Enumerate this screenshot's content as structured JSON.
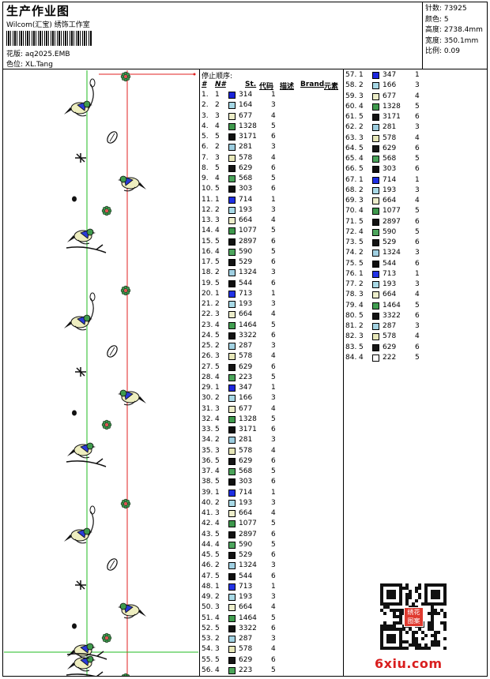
{
  "header": {
    "title": "生产作业图",
    "subtitle": "Wilcom(汇宝) 绣饰工作室",
    "file_label": "花版:",
    "file_value": "aq2025.EMB",
    "colorway_label": "色位:",
    "colorway_value": "XL.Tang"
  },
  "stats": [
    {
      "label": "针数:",
      "value": "73925"
    },
    {
      "label": "颜色:",
      "value": "5"
    },
    {
      "label": "高度:",
      "value": "2738.4mm"
    },
    {
      "label": "宽度:",
      "value": "350.1mm"
    },
    {
      "label": "比例:",
      "value": "0.09"
    }
  ],
  "sequence": {
    "title": "停止顺序:",
    "headers": {
      "stop": "#",
      "needle": "N#",
      "st": "St.",
      "code": "代码",
      "desc": "描述",
      "brand": "Brand",
      "element": "元素"
    }
  },
  "palette": {
    "314": "#1a23d8",
    "164": "#a5d6e4",
    "677": "#ecedc8",
    "1328": "#3f9a4d",
    "3171": "#111111",
    "281": "#9ccddf",
    "578": "#e7e7b9",
    "629": "#161616",
    "568": "#4aa35a",
    "303": "#101010",
    "714": "#1e2fe3",
    "193": "#a8d9e6",
    "664": "#edeecb",
    "1077": "#3d984c",
    "2897": "#121212",
    "590": "#4da55d",
    "529": "#141414",
    "1324": "#a0d0e2",
    "544": "#0f0f0f",
    "713": "#2233e6",
    "1464": "#419e50",
    "3322": "#131313",
    "287": "#a3d3e3",
    "223": "#4ba55a",
    "347": "#1d27de",
    "166": "#a6d7e5"
  },
  "rows_left": [
    {
      "n": "1.",
      "nd": "1",
      "c": "314",
      "e": "1"
    },
    {
      "n": "2.",
      "nd": "2",
      "c": "164",
      "e": "3"
    },
    {
      "n": "3.",
      "nd": "3",
      "c": "677",
      "e": "4"
    },
    {
      "n": "4.",
      "nd": "4",
      "c": "1328",
      "e": "5"
    },
    {
      "n": "5.",
      "nd": "5",
      "c": "3171",
      "e": "6"
    },
    {
      "n": "6.",
      "nd": "2",
      "c": "281",
      "e": "3"
    },
    {
      "n": "7.",
      "nd": "3",
      "c": "578",
      "e": "4"
    },
    {
      "n": "8.",
      "nd": "5",
      "c": "629",
      "e": "6"
    },
    {
      "n": "9.",
      "nd": "4",
      "c": "568",
      "e": "5"
    },
    {
      "n": "10.",
      "nd": "5",
      "c": "303",
      "e": "6"
    },
    {
      "n": "11.",
      "nd": "1",
      "c": "714",
      "e": "1"
    },
    {
      "n": "12.",
      "nd": "2",
      "c": "193",
      "e": "3"
    },
    {
      "n": "13.",
      "nd": "3",
      "c": "664",
      "e": "4"
    },
    {
      "n": "14.",
      "nd": "4",
      "c": "1077",
      "e": "5"
    },
    {
      "n": "15.",
      "nd": "5",
      "c": "2897",
      "e": "6"
    },
    {
      "n": "16.",
      "nd": "4",
      "c": "590",
      "e": "5"
    },
    {
      "n": "17.",
      "nd": "5",
      "c": "529",
      "e": "6"
    },
    {
      "n": "18.",
      "nd": "2",
      "c": "1324",
      "e": "3"
    },
    {
      "n": "19.",
      "nd": "5",
      "c": "544",
      "e": "6"
    },
    {
      "n": "20.",
      "nd": "1",
      "c": "713",
      "e": "1"
    },
    {
      "n": "21.",
      "nd": "2",
      "c": "193",
      "e": "3"
    },
    {
      "n": "22.",
      "nd": "3",
      "c": "664",
      "e": "4"
    },
    {
      "n": "23.",
      "nd": "4",
      "c": "1464",
      "e": "5"
    },
    {
      "n": "24.",
      "nd": "5",
      "c": "3322",
      "e": "6"
    },
    {
      "n": "25.",
      "nd": "2",
      "c": "287",
      "e": "3"
    },
    {
      "n": "26.",
      "nd": "3",
      "c": "578",
      "e": "4"
    },
    {
      "n": "27.",
      "nd": "5",
      "c": "629",
      "e": "6"
    },
    {
      "n": "28.",
      "nd": "4",
      "c": "223",
      "e": "5"
    },
    {
      "n": "29.",
      "nd": "1",
      "c": "347",
      "e": "1"
    },
    {
      "n": "30.",
      "nd": "2",
      "c": "166",
      "e": "3"
    },
    {
      "n": "31.",
      "nd": "3",
      "c": "677",
      "e": "4"
    },
    {
      "n": "32.",
      "nd": "4",
      "c": "1328",
      "e": "5"
    },
    {
      "n": "33.",
      "nd": "5",
      "c": "3171",
      "e": "6"
    },
    {
      "n": "34.",
      "nd": "2",
      "c": "281",
      "e": "3"
    },
    {
      "n": "35.",
      "nd": "3",
      "c": "578",
      "e": "4"
    },
    {
      "n": "36.",
      "nd": "5",
      "c": "629",
      "e": "6"
    },
    {
      "n": "37.",
      "nd": "4",
      "c": "568",
      "e": "5"
    },
    {
      "n": "38.",
      "nd": "5",
      "c": "303",
      "e": "6"
    },
    {
      "n": "39.",
      "nd": "1",
      "c": "714",
      "e": "1"
    },
    {
      "n": "40.",
      "nd": "2",
      "c": "193",
      "e": "3"
    },
    {
      "n": "41.",
      "nd": "3",
      "c": "664",
      "e": "4"
    },
    {
      "n": "42.",
      "nd": "4",
      "c": "1077",
      "e": "5"
    },
    {
      "n": "43.",
      "nd": "5",
      "c": "2897",
      "e": "6"
    },
    {
      "n": "44.",
      "nd": "4",
      "c": "590",
      "e": "5"
    },
    {
      "n": "45.",
      "nd": "5",
      "c": "529",
      "e": "6"
    },
    {
      "n": "46.",
      "nd": "2",
      "c": "1324",
      "e": "3"
    },
    {
      "n": "47.",
      "nd": "5",
      "c": "544",
      "e": "6"
    },
    {
      "n": "48.",
      "nd": "1",
      "c": "713",
      "e": "1"
    },
    {
      "n": "49.",
      "nd": "2",
      "c": "193",
      "e": "3"
    },
    {
      "n": "50.",
      "nd": "3",
      "c": "664",
      "e": "4"
    },
    {
      "n": "51.",
      "nd": "4",
      "c": "1464",
      "e": "5"
    },
    {
      "n": "52.",
      "nd": "5",
      "c": "3322",
      "e": "6"
    },
    {
      "n": "53.",
      "nd": "2",
      "c": "287",
      "e": "3"
    },
    {
      "n": "54.",
      "nd": "3",
      "c": "578",
      "e": "4"
    },
    {
      "n": "55.",
      "nd": "5",
      "c": "629",
      "e": "6"
    },
    {
      "n": "56.",
      "nd": "4",
      "c": "223",
      "e": "5"
    }
  ],
  "rows_right": [
    {
      "n": "57.",
      "nd": "1",
      "c": "347",
      "e": "1"
    },
    {
      "n": "58.",
      "nd": "2",
      "c": "166",
      "e": "3"
    },
    {
      "n": "59.",
      "nd": "3",
      "c": "677",
      "e": "4"
    },
    {
      "n": "60.",
      "nd": "4",
      "c": "1328",
      "e": "5"
    },
    {
      "n": "61.",
      "nd": "5",
      "c": "3171",
      "e": "6"
    },
    {
      "n": "62.",
      "nd": "2",
      "c": "281",
      "e": "3"
    },
    {
      "n": "63.",
      "nd": "3",
      "c": "578",
      "e": "4"
    },
    {
      "n": "64.",
      "nd": "5",
      "c": "629",
      "e": "6"
    },
    {
      "n": "65.",
      "nd": "4",
      "c": "568",
      "e": "5"
    },
    {
      "n": "66.",
      "nd": "5",
      "c": "303",
      "e": "6"
    },
    {
      "n": "67.",
      "nd": "1",
      "c": "714",
      "e": "1"
    },
    {
      "n": "68.",
      "nd": "2",
      "c": "193",
      "e": "3"
    },
    {
      "n": "69.",
      "nd": "3",
      "c": "664",
      "e": "4"
    },
    {
      "n": "70.",
      "nd": "4",
      "c": "1077",
      "e": "5"
    },
    {
      "n": "71.",
      "nd": "5",
      "c": "2897",
      "e": "6"
    },
    {
      "n": "72.",
      "nd": "4",
      "c": "590",
      "e": "5"
    },
    {
      "n": "73.",
      "nd": "5",
      "c": "529",
      "e": "6"
    },
    {
      "n": "74.",
      "nd": "2",
      "c": "1324",
      "e": "3"
    },
    {
      "n": "75.",
      "nd": "5",
      "c": "544",
      "e": "6"
    },
    {
      "n": "76.",
      "nd": "1",
      "c": "713",
      "e": "1"
    },
    {
      "n": "77.",
      "nd": "2",
      "c": "193",
      "e": "3"
    },
    {
      "n": "78.",
      "nd": "3",
      "c": "664",
      "e": "4"
    },
    {
      "n": "79.",
      "nd": "4",
      "c": "1464",
      "e": "5"
    },
    {
      "n": "80.",
      "nd": "5",
      "c": "3322",
      "e": "6"
    },
    {
      "n": "81.",
      "nd": "2",
      "c": "287",
      "e": "3"
    },
    {
      "n": "82.",
      "nd": "3",
      "c": "578",
      "e": "4"
    },
    {
      "n": "83.",
      "nd": "5",
      "c": "629",
      "e": "6"
    },
    {
      "n": "84.",
      "nd": "4",
      "c": "222",
      "e": "5"
    }
  ],
  "watermark": "6xiu.com",
  "seal_text": "绣花图案",
  "icons": {
    "qr": "qr-code-icon",
    "seal": "seal-icon"
  }
}
